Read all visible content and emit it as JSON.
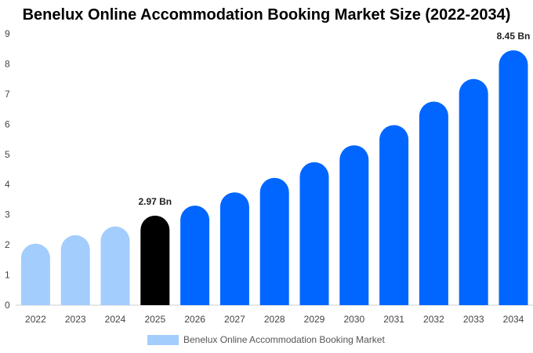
{
  "chart_data": {
    "type": "bar",
    "title": "Benelux Online Accommodation Booking Market Size (2022-2034)",
    "categories": [
      "2022",
      "2023",
      "2024",
      "2025",
      "2026",
      "2027",
      "2028",
      "2029",
      "2030",
      "2031",
      "2032",
      "2033",
      "2034"
    ],
    "series": [
      {
        "name": "Benelux Online Accommodation Booking Market",
        "values": [
          2.04,
          2.32,
          2.61,
          2.97,
          3.3,
          3.74,
          4.22,
          4.74,
          5.3,
          5.97,
          6.75,
          7.5,
          8.45
        ]
      }
    ],
    "data_labels": [
      {
        "category": "2025",
        "text": "2.97 Bn"
      },
      {
        "category": "2034",
        "text": "8.45 Bn"
      }
    ],
    "ylim": [
      0,
      9
    ],
    "yticks": [
      0,
      1,
      2,
      3,
      4,
      5,
      6,
      7,
      8,
      9
    ],
    "xlabel": "",
    "ylabel": "",
    "grid": false,
    "legend_position": "bottom",
    "colors": {
      "historical": "#a3cdfd",
      "current": "#000000",
      "forecast": "#0066ff",
      "legend": "#a3cdfd"
    },
    "bar_color_groups": [
      "historical",
      "historical",
      "historical",
      "current",
      "forecast",
      "forecast",
      "forecast",
      "forecast",
      "forecast",
      "forecast",
      "forecast",
      "forecast",
      "forecast"
    ]
  }
}
